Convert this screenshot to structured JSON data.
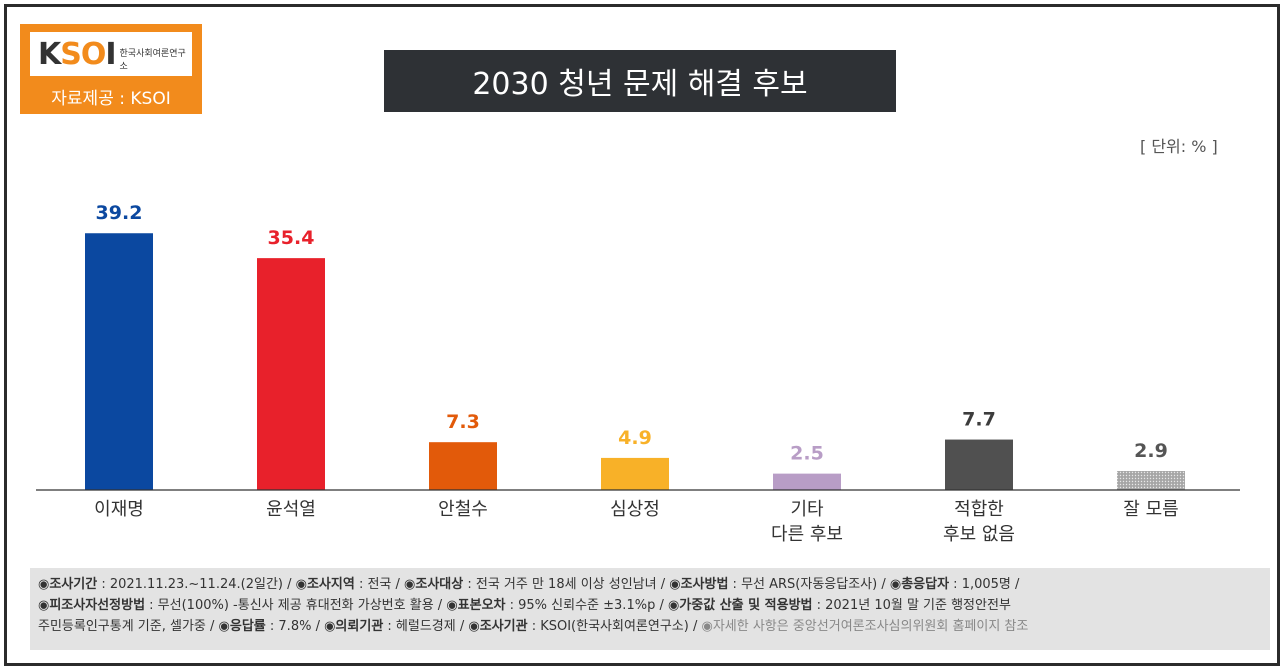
{
  "logo": {
    "mark_left": "K",
    "mark_mid": "SO",
    "mark_right": "I",
    "subtitle": "한국사회여론연구소",
    "caption": "자료제공 : KSOI"
  },
  "title": "2030 청년 문제 해결 후보",
  "unit": "[ 단위: % ]",
  "chart_data": {
    "type": "bar",
    "title": "2030 청년 문제 해결 후보",
    "categories": [
      "이재명",
      "윤석열",
      "안철수",
      "심상정",
      "기타\n다른 후보",
      "적합한\n후보 없음",
      "잘 모름"
    ],
    "values": [
      39.2,
      35.4,
      7.3,
      4.9,
      2.5,
      7.7,
      2.9
    ],
    "value_labels": [
      "39.2",
      "35.4",
      "7.3",
      "4.9",
      "2.5",
      "7.7",
      "2.9"
    ],
    "bar_colors": [
      "#0b48a0",
      "#e8212b",
      "#e25a0a",
      "#f8b128",
      "#b89dc6",
      "#505050",
      "#a6a6a6"
    ],
    "label_colors": [
      "#0b48a0",
      "#e8212b",
      "#e25a0a",
      "#f8b128",
      "#b89dc6",
      "#3c3c3c",
      "#555555"
    ],
    "ylabel": "단위: %",
    "xlabel": "",
    "ylim": [
      0,
      45
    ],
    "grid": false
  },
  "footer": {
    "line1": [
      {
        "k": "◉조사기간",
        "v": " : 2021.11.23.~11.24.(2일간)  / "
      },
      {
        "k": "◉조사지역",
        "v": " : 전국 / "
      },
      {
        "k": "◉조사대상",
        "v": " : 전국 거주 만 18세 이상 성인남녀 / "
      },
      {
        "k": "◉조사방법",
        "v": " : 무선 ARS(자동응답조사) / "
      },
      {
        "k": "◉총응답자",
        "v": " : 1,005명 /"
      }
    ],
    "line2": [
      {
        "k": "◉피조사자선정방법",
        "v": " : 무선(100%) -통신사 제공 휴대전화 가상번호 활용 / "
      },
      {
        "k": "◉표본오차",
        "v": " : 95% 신뢰수준 ±3.1%p / "
      },
      {
        "k": "◉가중값 산출 및 적용방법",
        "v": " : 2021년 10월 말 기준 행정안전부"
      }
    ],
    "line3_lead": "주민등록인구통계 기준, 셀가중 / ",
    "line3": [
      {
        "k": "◉응답률",
        "v": " : 7.8% / "
      },
      {
        "k": "◉의뢰기관",
        "v": " : 헤럴드경제 / "
      },
      {
        "k": "◉조사기관",
        "v": " : KSOI(한국사회여론연구소) / "
      }
    ],
    "line3_tail": "◉자세한 사항은 중앙선거여론조사심의위원회 홈페이지 참조"
  }
}
